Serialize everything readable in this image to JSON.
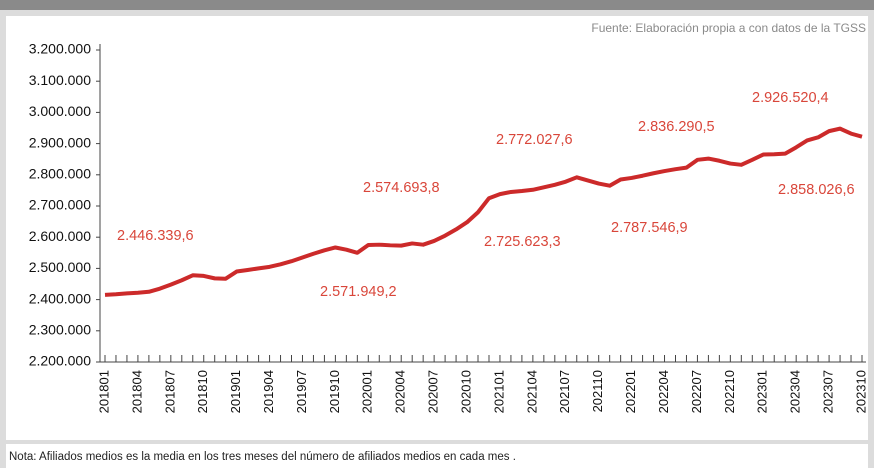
{
  "chart_data": {
    "type": "line",
    "source": "Fuente: Elaboración propia a con datos de la TGSS",
    "note": "Nota: Afiliados medios es la media en los tres meses del número de afiliados medios en cada mes .",
    "categories": [
      "201801",
      null,
      null,
      "201804",
      null,
      null,
      "201807",
      null,
      null,
      "201810",
      null,
      null,
      "201901",
      null,
      null,
      "201904",
      null,
      null,
      "201907",
      null,
      null,
      "201910",
      null,
      null,
      "202001",
      null,
      null,
      "202004",
      null,
      null,
      "202007",
      null,
      null,
      "202010",
      null,
      null,
      "202101",
      null,
      null,
      "202104",
      null,
      null,
      "202107",
      null,
      null,
      "202110",
      null,
      null,
      "202201",
      null,
      null,
      "202204",
      null,
      null,
      "202207",
      null,
      null,
      "202210",
      null,
      null,
      "202301",
      null,
      null,
      "202304",
      null,
      null,
      "202307",
      null,
      null,
      "202310"
    ],
    "series": [
      {
        "name": "Afiliados medios",
        "color": "#cc2a2a",
        "values": [
          2415000,
          2417000,
          2420000,
          2422000,
          2425000,
          2435000,
          2448000,
          2462000,
          2478000,
          2476000,
          2468000,
          2467000,
          2490000,
          2495000,
          2500000,
          2505000,
          2513000,
          2523000,
          2535000,
          2547000,
          2558000,
          2567000,
          2560000,
          2550000,
          2575000,
          2576000,
          2574000,
          2573000,
          2580000,
          2576000,
          2588000,
          2605000,
          2625000,
          2648000,
          2680000,
          2725000,
          2738000,
          2745000,
          2748000,
          2752000,
          2760000,
          2768000,
          2778000,
          2792000,
          2782000,
          2772000,
          2765000,
          2785000,
          2790000,
          2797000,
          2805000,
          2812000,
          2818000,
          2823000,
          2848000,
          2852000,
          2845000,
          2836000,
          2832000,
          2848000,
          2865000,
          2866000,
          2868000,
          2888000,
          2910000,
          2920000,
          2940000,
          2948000,
          2932000,
          2922000
        ]
      }
    ],
    "annotations": [
      "2.446.339,6",
      "2.571.949,2",
      "2.574.693,8",
      "2.725.623,3",
      "2.772.027,6",
      "2.787.546,9",
      "2.836.290,5",
      "2.926.520,4",
      "2.858.026,6"
    ],
    "annotation_color": "#d9463a",
    "ylim": [
      2200000,
      3200000
    ],
    "yticks": [
      {
        "value": 2200000,
        "label": "2.200.000"
      },
      {
        "value": 2300000,
        "label": "2.300.000"
      },
      {
        "value": 2400000,
        "label": "2.400.000"
      },
      {
        "value": 2500000,
        "label": "2.500.000"
      },
      {
        "value": 2600000,
        "label": "2.600.000"
      },
      {
        "value": 2700000,
        "label": "2.700.000"
      },
      {
        "value": 2800000,
        "label": "2.800.000"
      },
      {
        "value": 2900000,
        "label": "2.900.000"
      },
      {
        "value": 3000000,
        "label": "3.000.000"
      },
      {
        "value": 3100000,
        "label": "3.100.000"
      },
      {
        "value": 3200000,
        "label": "3.200.000"
      }
    ],
    "grid": false
  }
}
